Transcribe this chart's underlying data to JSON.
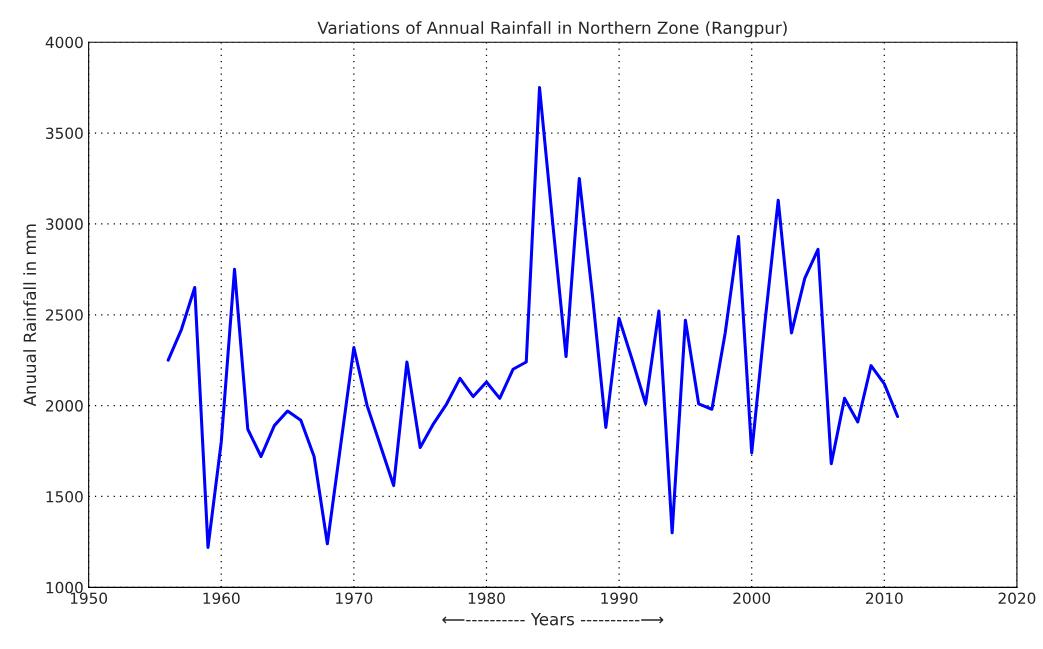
{
  "chart_data": {
    "type": "line",
    "title": "Variations of Annual Rainfall in Northern Zone (Rangpur)",
    "xlabel": "⟵---------- Years ----------⟶",
    "ylabel": "Anuual Rainfall in mm",
    "x": [
      1956,
      1957,
      1958,
      1959,
      1960,
      1961,
      1962,
      1963,
      1964,
      1965,
      1966,
      1967,
      1968,
      1969,
      1970,
      1971,
      1972,
      1973,
      1974,
      1975,
      1976,
      1977,
      1978,
      1979,
      1980,
      1981,
      1982,
      1983,
      1984,
      1985,
      1986,
      1987,
      1988,
      1989,
      1990,
      1991,
      1992,
      1993,
      1994,
      1995,
      1996,
      1997,
      1998,
      1999,
      2000,
      2001,
      2002,
      2003,
      2004,
      2005,
      2006,
      2007,
      2008,
      2009,
      2010,
      2011
    ],
    "series": [
      {
        "color": "#0000ff",
        "values": [
          2250,
          2420,
          2650,
          1220,
          1800,
          2750,
          1870,
          1720,
          1890,
          1970,
          1920,
          1720,
          1240,
          1780,
          2320,
          2000,
          1780,
          1560,
          2240,
          1770,
          1900,
          2010,
          2150,
          2050,
          2130,
          2040,
          2200,
          2240,
          3750,
          3000,
          2270,
          3250,
          2600,
          1880,
          2480,
          2250,
          2010,
          2520,
          1300,
          2470,
          2010,
          1980,
          2400,
          2930,
          1740,
          2460,
          3130,
          2400,
          2700,
          2860,
          1680,
          2040,
          1910,
          2220,
          2120,
          1940
        ]
      }
    ],
    "xlim": [
      1950,
      2020
    ],
    "xticks": [
      1950,
      1960,
      1970,
      1980,
      1990,
      2000,
      2010,
      2020
    ],
    "ylim": [
      1000,
      4000
    ],
    "yticks": [
      1000,
      1500,
      2000,
      2500,
      3000,
      3500,
      4000
    ],
    "grid": true,
    "marker": "none",
    "line_style": "solid"
  }
}
